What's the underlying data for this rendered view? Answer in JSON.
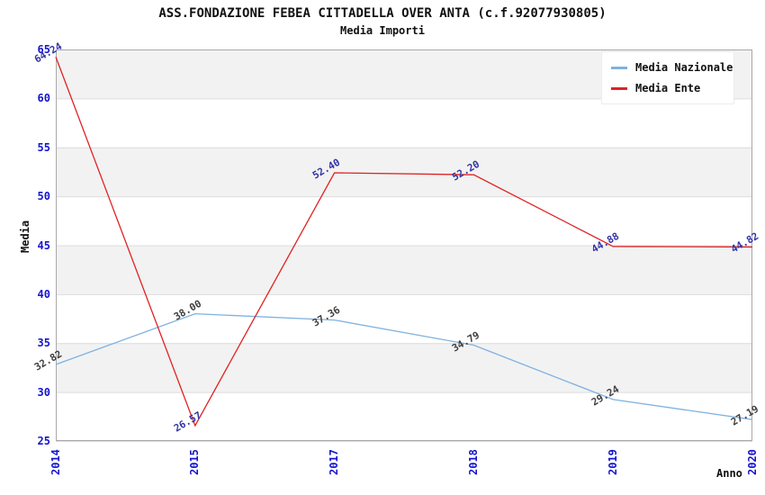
{
  "chart_data": {
    "type": "line",
    "title": "ASS.FONDAZIONE FEBEA CITTADELLA OVER ANTA (c.f.92077930805)",
    "subtitle": "Media Importi",
    "xlabel": "Anno",
    "ylabel": "Media",
    "categories": [
      "2014",
      "2015",
      "2017",
      "2018",
      "2019",
      "2020"
    ],
    "series": [
      {
        "name": "Media Nazionale",
        "color": "#7EB2E0",
        "label_color": "#404040",
        "values": [
          32.82,
          38.0,
          37.36,
          34.79,
          29.24,
          27.19
        ],
        "labels": [
          "32.82",
          "38.00",
          "37.36",
          "34.79",
          "29.24",
          "27.19"
        ]
      },
      {
        "name": "Media Ente",
        "color": "#E02222",
        "label_color": "#3434A4",
        "values": [
          64.24,
          26.57,
          52.4,
          52.2,
          44.88,
          44.82
        ],
        "labels": [
          "64.24",
          "26.57",
          "52.40",
          "52.20",
          "44.88",
          "44.82"
        ]
      }
    ],
    "ylim": [
      25,
      65
    ],
    "y_ticks": [
      65,
      60,
      55,
      50,
      45,
      40,
      35,
      30,
      25
    ],
    "tick_color": "#1414CC",
    "band_color": "#F2F2F2",
    "grid_color": "#DCDCDC",
    "frame_color": "#A9A9A9",
    "grid": true,
    "legend_position": "top-right"
  }
}
